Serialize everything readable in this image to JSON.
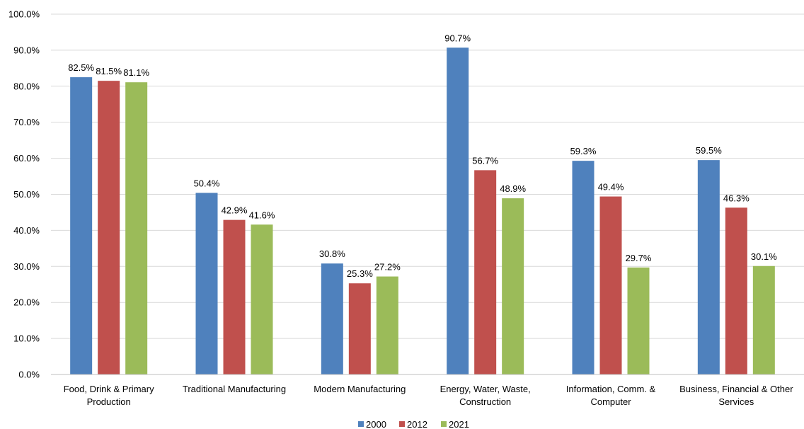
{
  "chart_data": {
    "type": "bar",
    "categories": [
      [
        "Food, Drink & Primary",
        "Production"
      ],
      [
        "Traditional  Manufacturing"
      ],
      [
        "Modern  Manufacturing"
      ],
      [
        "Energy, Water, Waste,",
        "Construction"
      ],
      [
        "Information, Comm. &",
        "Computer"
      ],
      [
        "Business, Financial & Other",
        "Services"
      ]
    ],
    "series": [
      {
        "name": "2000",
        "color": "#4F81BD",
        "values": [
          82.5,
          50.4,
          30.8,
          90.7,
          59.3,
          59.5
        ],
        "labels": [
          "82.5%",
          "50.4%",
          "30.8%",
          "90.7%",
          "59.3%",
          "59.5%"
        ]
      },
      {
        "name": "2012",
        "color": "#C0504D",
        "values": [
          81.5,
          42.9,
          25.3,
          56.7,
          49.4,
          46.3
        ],
        "labels": [
          "81.5%",
          "42.9%",
          "25.3%",
          "56.7%",
          "49.4%",
          "46.3%"
        ]
      },
      {
        "name": "2021",
        "color": "#9BBB59",
        "values": [
          81.1,
          41.6,
          27.2,
          48.9,
          29.7,
          30.1
        ],
        "labels": [
          "81.1%",
          "41.6%",
          "27.2%",
          "48.9%",
          "29.7%",
          "30.1%"
        ]
      }
    ],
    "yticks": [
      "0.0%",
      "10.0%",
      "20.0%",
      "30.0%",
      "40.0%",
      "50.0%",
      "60.0%",
      "70.0%",
      "80.0%",
      "90.0%",
      "100.0%"
    ],
    "ylim": [
      0,
      100
    ],
    "grid": true,
    "legend": "bottom",
    "title": "",
    "xlabel": "",
    "ylabel": ""
  }
}
